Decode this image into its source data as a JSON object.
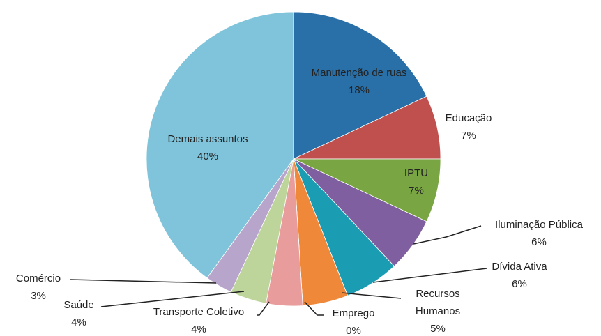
{
  "chart_data": {
    "type": "pie",
    "categories": [
      "Manutenção de ruas",
      "Educação",
      "IPTU",
      "Iluminação Pública",
      "Dívida Ativa",
      "Recursos Humanos",
      "Emprego",
      "Transporte Coletivo",
      "Saúde",
      "Comércio",
      "Demais assuntos"
    ],
    "values": [
      18,
      7,
      7,
      6,
      6,
      5,
      0,
      4,
      4,
      3,
      40
    ],
    "value_labels": [
      "18%",
      "7%",
      "7%",
      "6%",
      "6%",
      "5%",
      "0%",
      "4%",
      "4%",
      "3%",
      "40%"
    ],
    "colors": [
      "#2a70a8",
      "#c0504d",
      "#79a543",
      "#7f5f9f",
      "#1a9db3",
      "#f0883a",
      "#9fb7d9",
      "#e89c9b",
      "#bdd59b",
      "#b8a5cc",
      "#7fc4da"
    ]
  }
}
